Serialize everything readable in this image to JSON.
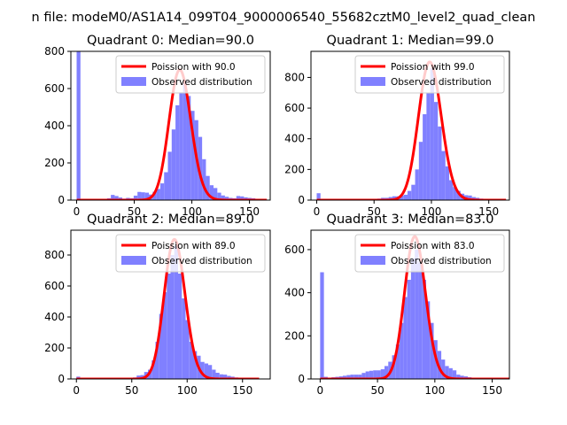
{
  "figure_title": "n file: modeM0/AS1A14_099T04_9000006540_55682cztM0_level2_quad_clean",
  "colors": {
    "poisson": "#ff0000",
    "histogram": "#8080ff"
  },
  "chart_data": [
    {
      "type": "bar",
      "title": "Quadrant 0: Median=90.0",
      "xlim": [
        -5,
        168
      ],
      "ylim": [
        0,
        800
      ],
      "xticks": [
        0,
        50,
        100,
        150
      ],
      "xtick_labels": [
        "0",
        "50",
        "100",
        "150"
      ],
      "yticks": [
        0,
        200,
        400,
        600,
        800
      ],
      "ytick_labels": [
        "0",
        "200",
        "400",
        "600",
        "800"
      ],
      "legend": [
        "Poission with 90.0",
        "Observed distribution"
      ],
      "legend_loc": "upper right",
      "poisson_mean": 90.0,
      "poisson_scale": 700,
      "bin_width": 3.3,
      "bins": [
        [
          0,
          800
        ],
        [
          3.3,
          0
        ],
        [
          6.6,
          2
        ],
        [
          9.9,
          2
        ],
        [
          13.2,
          2
        ],
        [
          16.5,
          3
        ],
        [
          19.8,
          5
        ],
        [
          23.1,
          5
        ],
        [
          26.4,
          10
        ],
        [
          29.7,
          28
        ],
        [
          33,
          22
        ],
        [
          36.3,
          14
        ],
        [
          39.6,
          8
        ],
        [
          42.9,
          12
        ],
        [
          46.2,
          10
        ],
        [
          49.5,
          24
        ],
        [
          52.8,
          44
        ],
        [
          56.1,
          42
        ],
        [
          59.4,
          40
        ],
        [
          62.7,
          30
        ],
        [
          66,
          45
        ],
        [
          69.3,
          60
        ],
        [
          72.6,
          90
        ],
        [
          75.9,
          150
        ],
        [
          79.2,
          260
        ],
        [
          82.5,
          380
        ],
        [
          85.8,
          510
        ],
        [
          89.1,
          580
        ],
        [
          92.4,
          640
        ],
        [
          95.7,
          560
        ],
        [
          99,
          480
        ],
        [
          102.3,
          430
        ],
        [
          105.6,
          340
        ],
        [
          108.9,
          220
        ],
        [
          112.2,
          130
        ],
        [
          115.5,
          80
        ],
        [
          118.8,
          65
        ],
        [
          122.1,
          40
        ],
        [
          125.4,
          25
        ],
        [
          128.7,
          18
        ],
        [
          132,
          12
        ],
        [
          135.3,
          10
        ],
        [
          138.6,
          22
        ],
        [
          141.9,
          20
        ],
        [
          145.2,
          15
        ],
        [
          148.5,
          12
        ],
        [
          151.8,
          10
        ],
        [
          155.1,
          6
        ],
        [
          158.4,
          4
        ]
      ]
    },
    {
      "type": "bar",
      "title": "Quadrant 1: Median=99.0",
      "xlim": [
        -5,
        168
      ],
      "ylim": [
        0,
        970
      ],
      "xticks": [
        0,
        50,
        100,
        150
      ],
      "xtick_labels": [
        "0",
        "50",
        "100",
        "150"
      ],
      "yticks": [
        0,
        200,
        400,
        600,
        800
      ],
      "ytick_labels": [
        "0",
        "200",
        "400",
        "600",
        "800"
      ],
      "legend": [
        "Poission with 99.0",
        "Observed distribution"
      ],
      "legend_loc": "upper right",
      "poisson_mean": 99.0,
      "poisson_scale": 900,
      "bin_width": 3.3,
      "bins": [
        [
          0,
          45
        ],
        [
          3.3,
          2
        ],
        [
          6.6,
          2
        ],
        [
          9.9,
          1
        ],
        [
          13.2,
          2
        ],
        [
          16.5,
          3
        ],
        [
          19.8,
          3
        ],
        [
          23.1,
          3
        ],
        [
          26.4,
          2
        ],
        [
          29.7,
          2
        ],
        [
          33,
          5
        ],
        [
          36.3,
          5
        ],
        [
          39.6,
          5
        ],
        [
          42.9,
          6
        ],
        [
          46.2,
          6
        ],
        [
          49.5,
          8
        ],
        [
          52.8,
          10
        ],
        [
          56.1,
          15
        ],
        [
          59.4,
          15
        ],
        [
          62.7,
          20
        ],
        [
          66,
          25
        ],
        [
          69.3,
          25
        ],
        [
          72.6,
          30
        ],
        [
          75.9,
          35
        ],
        [
          79.2,
          60
        ],
        [
          82.5,
          100
        ],
        [
          85.8,
          200
        ],
        [
          89.1,
          380
        ],
        [
          92.4,
          560
        ],
        [
          95.7,
          700
        ],
        [
          99,
          860
        ],
        [
          102.3,
          640
        ],
        [
          105.6,
          480
        ],
        [
          108.9,
          320
        ],
        [
          112.2,
          220
        ],
        [
          115.5,
          130
        ],
        [
          118.8,
          85
        ],
        [
          122.1,
          60
        ],
        [
          125.4,
          42
        ],
        [
          128.7,
          32
        ],
        [
          132,
          30
        ],
        [
          135.3,
          20
        ],
        [
          138.6,
          15
        ],
        [
          141.9,
          10
        ],
        [
          145.2,
          8
        ],
        [
          148.5,
          6
        ],
        [
          151.8,
          5
        ]
      ]
    },
    {
      "type": "bar",
      "title": "Quadrant 2: Median=89.0",
      "xlim": [
        -5,
        175
      ],
      "ylim": [
        0,
        960
      ],
      "xticks": [
        0,
        50,
        100,
        150
      ],
      "xtick_labels": [
        "0",
        "50",
        "100",
        "150"
      ],
      "yticks": [
        0,
        200,
        400,
        600,
        800
      ],
      "ytick_labels": [
        "0",
        "200",
        "400",
        "600",
        "800"
      ],
      "legend": [
        "Poission with 89.0",
        "Observed distribution"
      ],
      "legend_loc": "upper right",
      "poisson_mean": 89.0,
      "poisson_scale": 900,
      "bin_width": 3.4,
      "bins": [
        [
          0,
          15
        ],
        [
          3.4,
          5
        ],
        [
          6.8,
          3
        ],
        [
          10.2,
          2
        ],
        [
          13.6,
          2
        ],
        [
          17,
          2
        ],
        [
          20.4,
          2
        ],
        [
          23.8,
          2
        ],
        [
          27.2,
          3
        ],
        [
          30.6,
          3
        ],
        [
          34,
          3
        ],
        [
          37.4,
          3
        ],
        [
          40.8,
          4
        ],
        [
          44.2,
          4
        ],
        [
          47.6,
          5
        ],
        [
          51,
          10
        ],
        [
          54.4,
          22
        ],
        [
          57.8,
          25
        ],
        [
          61.2,
          45
        ],
        [
          64.6,
          60
        ],
        [
          68,
          120
        ],
        [
          71.4,
          240
        ],
        [
          74.8,
          420
        ],
        [
          78.2,
          560
        ],
        [
          81.6,
          680
        ],
        [
          85,
          800
        ],
        [
          88.4,
          860
        ],
        [
          91.8,
          680
        ],
        [
          95.2,
          520
        ],
        [
          98.6,
          380
        ],
        [
          102,
          240
        ],
        [
          105.4,
          180
        ],
        [
          108.8,
          150
        ],
        [
          112.2,
          110
        ],
        [
          115.6,
          100
        ],
        [
          119,
          90
        ],
        [
          122.4,
          60
        ],
        [
          125.8,
          40
        ],
        [
          129.2,
          30
        ],
        [
          132.6,
          28
        ],
        [
          136,
          20
        ],
        [
          139.4,
          15
        ],
        [
          142.8,
          10
        ],
        [
          146.2,
          8
        ],
        [
          149.6,
          6
        ]
      ]
    },
    {
      "type": "bar",
      "title": "Quadrant 3: Median=83.0",
      "xlim": [
        -8,
        165
      ],
      "ylim": [
        0,
        690
      ],
      "xticks": [
        0,
        50,
        100,
        150
      ],
      "xtick_labels": [
        "0",
        "50",
        "100",
        "150"
      ],
      "yticks": [
        0,
        200,
        400,
        600
      ],
      "ytick_labels": [
        "0",
        "200",
        "400",
        "600"
      ],
      "legend": [
        "Poission with 83.0",
        "Observed distribution"
      ],
      "legend_loc": "upper right",
      "poisson_mean": 83.0,
      "poisson_scale": 660,
      "bin_width": 3.3,
      "bins": [
        [
          0,
          495
        ],
        [
          3.3,
          10
        ],
        [
          6.6,
          5
        ],
        [
          9.9,
          8
        ],
        [
          13.2,
          10
        ],
        [
          16.5,
          12
        ],
        [
          19.8,
          15
        ],
        [
          23.1,
          18
        ],
        [
          26.4,
          20
        ],
        [
          29.7,
          20
        ],
        [
          33,
          20
        ],
        [
          36.3,
          28
        ],
        [
          39.6,
          35
        ],
        [
          42.9,
          38
        ],
        [
          46.2,
          40
        ],
        [
          49.5,
          40
        ],
        [
          52.8,
          45
        ],
        [
          56.1,
          60
        ],
        [
          59.4,
          80
        ],
        [
          62.7,
          110
        ],
        [
          66,
          160
        ],
        [
          69.3,
          260
        ],
        [
          72.6,
          380
        ],
        [
          75.9,
          460
        ],
        [
          79.2,
          560
        ],
        [
          82.5,
          600
        ],
        [
          85.8,
          540
        ],
        [
          89.1,
          460
        ],
        [
          92.4,
          360
        ],
        [
          95.7,
          260
        ],
        [
          99,
          180
        ],
        [
          102.3,
          130
        ],
        [
          105.6,
          90
        ],
        [
          108.9,
          60
        ],
        [
          112.2,
          50
        ],
        [
          115.5,
          40
        ],
        [
          118.8,
          20
        ],
        [
          122.1,
          15
        ],
        [
          125.4,
          12
        ],
        [
          128.7,
          8
        ],
        [
          132,
          5
        ],
        [
          135.3,
          4
        ],
        [
          138.6,
          3
        ]
      ]
    }
  ]
}
